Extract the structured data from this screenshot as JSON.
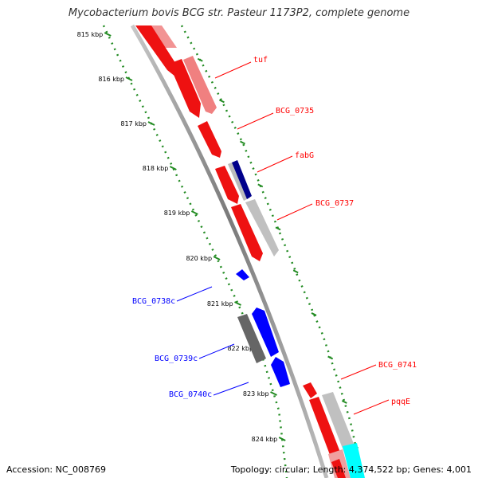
{
  "title": "Mycobacterium bovis BCG str. Pasteur 1173P2, complete genome",
  "footer": {
    "accession": "Accession: NC_008769",
    "summary": "Topology: circular; Length: 4,374,522 bp; Genes: 4,001"
  },
  "ticks": [
    {
      "label": "815 kbp",
      "kbp": 815
    },
    {
      "label": "816 kbp",
      "kbp": 816
    },
    {
      "label": "817 kbp",
      "kbp": 817
    },
    {
      "label": "818 kbp",
      "kbp": 818
    },
    {
      "label": "819 kbp",
      "kbp": 819
    },
    {
      "label": "820 kbp",
      "kbp": 820
    },
    {
      "label": "821 kbp",
      "kbp": 821
    },
    {
      "label": "822 kbp",
      "kbp": 822
    },
    {
      "label": "823 kbp",
      "kbp": 823
    },
    {
      "label": "824 kbp",
      "kbp": 824
    }
  ],
  "gene_labels": [
    {
      "name": "tuf",
      "strand": "forward"
    },
    {
      "name": "BCG_0735",
      "strand": "forward"
    },
    {
      "name": "fabG",
      "strand": "forward"
    },
    {
      "name": "BCG_0737",
      "strand": "forward"
    },
    {
      "name": "BCG_0738c",
      "strand": "reverse"
    },
    {
      "name": "BCG_0739c",
      "strand": "reverse"
    },
    {
      "name": "BCG_0740c",
      "strand": "reverse"
    },
    {
      "name": "BCG_0741",
      "strand": "forward"
    },
    {
      "name": "pqqE",
      "strand": "forward"
    }
  ],
  "colors": {
    "forward": "#ff0000",
    "forward_light": "#f08080",
    "reverse": "#0000ff",
    "reverse_dark": "#00008b",
    "gray": "#bbbbbb",
    "dark_gray": "#666666",
    "cyan": "#00ffff",
    "backbone": "#8a8a8a",
    "ticks": "#228B22"
  }
}
